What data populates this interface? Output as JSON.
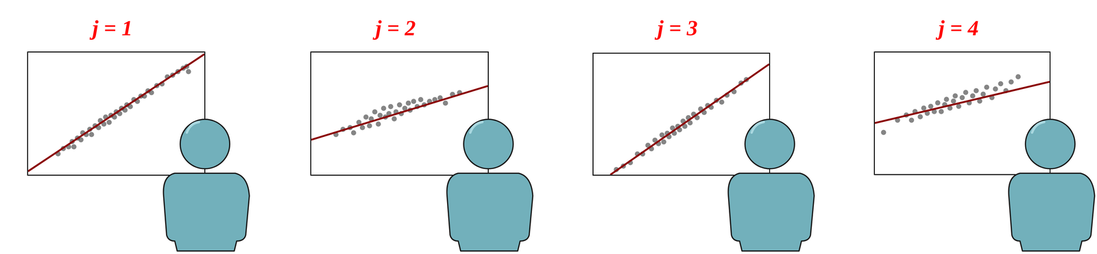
{
  "chart_data": [
    {
      "type": "scatter",
      "title": "j = 1",
      "xlim": [
        0,
        10
      ],
      "ylim": [
        0,
        7
      ],
      "tick_labels": false,
      "grid": false,
      "series": [
        {
          "type": "scatter",
          "color": "#333333",
          "marker": "circle",
          "x": [
            1.7,
            2.0,
            2.3,
            2.5,
            2.6,
            2.8,
            3.0,
            3.1,
            3.3,
            3.5,
            3.6,
            3.8,
            4.0,
            4.1,
            4.3,
            4.4,
            4.6,
            4.7,
            4.9,
            5.0,
            5.2,
            5.3,
            5.5,
            5.6,
            5.8,
            6.0,
            6.2,
            6.4,
            6.6,
            6.8,
            7.0,
            7.3,
            7.6,
            7.9,
            8.2,
            8.5,
            8.8,
            9.0,
            9.1
          ],
          "values": [
            1.2,
            1.5,
            1.6,
            1.9,
            1.6,
            2.1,
            2.0,
            2.4,
            2.3,
            2.6,
            2.3,
            2.8,
            2.7,
            3.1,
            2.9,
            3.3,
            3.0,
            3.4,
            3.3,
            3.6,
            3.5,
            3.8,
            3.7,
            4.0,
            3.9,
            4.3,
            4.2,
            4.5,
            4.5,
            4.8,
            4.7,
            5.1,
            5.2,
            5.6,
            5.7,
            5.9,
            6.1,
            6.2,
            5.9
          ]
        },
        {
          "type": "line",
          "color": "#8b0000",
          "line_style": "solid",
          "x": [
            0,
            10
          ],
          "values": [
            0.2,
            6.9
          ]
        }
      ]
    },
    {
      "type": "scatter",
      "title": "j = 2",
      "xlim": [
        0,
        10
      ],
      "ylim": [
        0,
        7
      ],
      "tick_labels": false,
      "grid": false,
      "series": [
        {
          "type": "scatter",
          "color": "#333333",
          "marker": "circle",
          "x": [
            1.4,
            1.8,
            2.2,
            2.4,
            2.7,
            2.9,
            3.1,
            3.3,
            3.4,
            3.6,
            3.8,
            3.9,
            4.1,
            4.2,
            4.4,
            4.5,
            4.7,
            4.8,
            5.0,
            5.1,
            5.3,
            5.5,
            5.6,
            5.8,
            6.0,
            6.2,
            6.4,
            6.7,
            7.0,
            7.3,
            7.6,
            8.0,
            8.4
          ],
          "values": [
            2.3,
            2.6,
            2.7,
            2.4,
            3.0,
            2.7,
            3.3,
            2.8,
            3.2,
            3.6,
            2.9,
            3.4,
            3.8,
            3.3,
            3.5,
            3.9,
            3.2,
            3.6,
            4.0,
            3.5,
            3.8,
            4.1,
            3.7,
            4.2,
            3.9,
            4.3,
            4.0,
            4.2,
            4.3,
            4.4,
            4.1,
            4.6,
            4.7
          ]
        },
        {
          "type": "line",
          "color": "#8b0000",
          "line_style": "solid",
          "x": [
            0,
            10
          ],
          "values": [
            2.0,
            5.08
          ]
        }
      ]
    },
    {
      "type": "scatter",
      "title": "j = 3",
      "xlim": [
        0,
        10
      ],
      "ylim": [
        0,
        7
      ],
      "tick_labels": false,
      "grid": false,
      "series": [
        {
          "type": "scatter",
          "color": "#333333",
          "marker": "circle",
          "x": [
            1.3,
            1.7,
            2.1,
            2.5,
            2.8,
            3.1,
            3.3,
            3.5,
            3.7,
            3.9,
            4.0,
            4.2,
            4.3,
            4.5,
            4.6,
            4.8,
            4.9,
            5.1,
            5.2,
            5.4,
            5.5,
            5.7,
            5.9,
            6.1,
            6.3,
            6.5,
            6.7,
            7.0,
            7.3,
            7.6,
            8.0,
            8.4,
            8.7
          ],
          "values": [
            0.3,
            0.5,
            0.7,
            1.2,
            1.2,
            1.7,
            1.5,
            2.0,
            1.8,
            2.3,
            1.9,
            2.4,
            2.2,
            2.7,
            2.4,
            2.8,
            2.6,
            3.1,
            2.8,
            3.3,
            3.0,
            3.5,
            3.3,
            3.8,
            3.6,
            4.0,
            3.9,
            4.3,
            4.2,
            4.6,
            4.8,
            5.3,
            5.5
          ]
        },
        {
          "type": "line",
          "color": "#8b0000",
          "line_style": "solid",
          "x": [
            0.96,
            10
          ],
          "values": [
            0,
            6.39
          ]
        }
      ]
    },
    {
      "type": "scatter",
      "title": "j = 4",
      "xlim": [
        0,
        10
      ],
      "ylim": [
        0,
        7
      ],
      "tick_labels": false,
      "grid": false,
      "series": [
        {
          "type": "scatter",
          "color": "#333333",
          "marker": "circle",
          "x": [
            0.5,
            1.3,
            1.8,
            2.1,
            2.3,
            2.6,
            2.8,
            3.0,
            3.2,
            3.4,
            3.6,
            3.8,
            4.0,
            4.1,
            4.3,
            4.5,
            4.6,
            4.8,
            5.0,
            5.2,
            5.4,
            5.6,
            5.8,
            6.0,
            6.2,
            6.4,
            6.7,
            6.9,
            7.2,
            7.5,
            7.8,
            8.2
          ],
          "values": [
            2.4,
            3.1,
            3.4,
            3.1,
            3.6,
            3.3,
            3.8,
            3.5,
            3.9,
            3.6,
            4.1,
            3.6,
            4.0,
            4.3,
            3.8,
            4.2,
            4.5,
            3.9,
            4.4,
            4.7,
            4.1,
            4.5,
            4.8,
            4.2,
            4.6,
            5.0,
            4.4,
            4.9,
            5.2,
            4.8,
            5.3,
            5.6
          ]
        },
        {
          "type": "line",
          "color": "#8b0000",
          "line_style": "solid",
          "x": [
            0,
            10
          ],
          "values": [
            2.94,
            5.31
          ]
        }
      ]
    }
  ]
}
